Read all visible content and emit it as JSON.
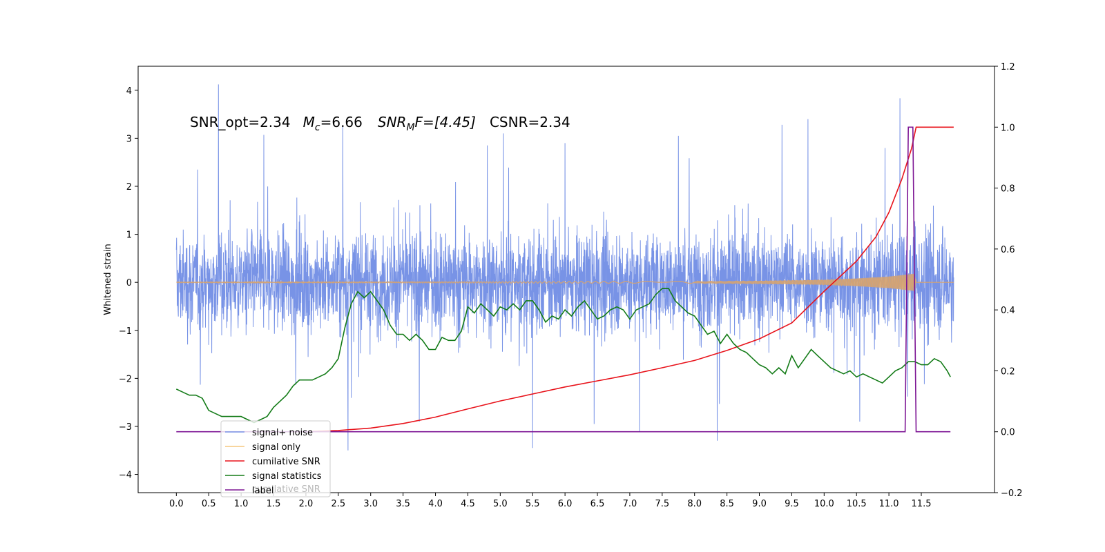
{
  "chart_data": {
    "type": "line",
    "annotation_parts": [
      "SNR_opt=2.34",
      "M",
      "c",
      "=6.66",
      "SNR",
      "M",
      "F=[4.45]",
      "CSNR=2.34"
    ],
    "ylabel_left": "Whitened strain",
    "x_ticks": [
      "0.0",
      "0.5",
      "1.0",
      "1.5",
      "2.0",
      "2.5",
      "3.0",
      "3.5",
      "4.0",
      "4.5",
      "5.0",
      "5.5",
      "6.0",
      "6.5",
      "7.0",
      "7.5",
      "8.0",
      "8.5",
      "9.0",
      "9.5",
      "10.0",
      "10.5",
      "11.0",
      "11.5"
    ],
    "y_left_ticks": [
      "4",
      "3",
      "2",
      "1",
      "0",
      "−1",
      "−2",
      "−3",
      "−4"
    ],
    "y_right_ticks": [
      "1.2",
      "1.0",
      "0.8",
      "0.6",
      "0.4",
      "0.2",
      "0.0",
      "−0.2"
    ],
    "xlim": [
      -0.59,
      12.63
    ],
    "ylim_left": [
      -4.38,
      4.5
    ],
    "ylim_right": [
      -0.2,
      1.2
    ],
    "grid": false,
    "legend_position": "lower-left",
    "legend": [
      {
        "label": "signal+ noise",
        "color": "#7893e6"
      },
      {
        "label": "signal only",
        "color": "#f5c77e"
      },
      {
        "label": "cumilative SNR",
        "color": "#e8121a"
      },
      {
        "label": "signal statistics",
        "color": "#137b17"
      },
      {
        "label": "label",
        "color": "#7d1594"
      }
    ],
    "legend_overlap_text": "cumilative SNR",
    "series": [
      {
        "name": "signal+ noise",
        "axis": "left",
        "color": "#7893e6",
        "x_range": [
          0,
          12.0
        ],
        "typical_range": [
          -1.5,
          1.5
        ],
        "peak_max": 4.12,
        "peak_min": -3.5,
        "spikes": [
          [
            0.65,
            4.12
          ],
          [
            2.65,
            -3.5
          ],
          [
            5.5,
            -3.45
          ],
          [
            2.57,
            3.25
          ],
          [
            7.75,
            3.05
          ],
          [
            9.35,
            3.28
          ],
          [
            9.75,
            3.4
          ],
          [
            1.35,
            3.07
          ],
          [
            5.05,
            3.1
          ],
          [
            3.75,
            -2.9
          ],
          [
            6.45,
            -2.95
          ],
          [
            8.35,
            -3.3
          ],
          [
            10.55,
            -2.9
          ],
          [
            7.15,
            -3.1
          ],
          [
            4.8,
            2.85
          ],
          [
            6.0,
            2.9
          ]
        ]
      },
      {
        "name": "signal only",
        "axis": "left",
        "color": "#f5c77e",
        "baseline": 0,
        "x": [
          0,
          8.0,
          9.0,
          10.0,
          10.5,
          11.0,
          11.4,
          11.42,
          12.0
        ],
        "amplitude": [
          0.01,
          0.02,
          0.03,
          0.05,
          0.08,
          0.12,
          0.18,
          0.0,
          0.0
        ]
      },
      {
        "name": "cumilative SNR",
        "axis": "right",
        "color": "#e8121a",
        "x": [
          2.0,
          2.5,
          3.0,
          3.5,
          4.0,
          4.5,
          5.0,
          5.5,
          6.0,
          6.5,
          7.0,
          7.5,
          8.0,
          8.5,
          9.0,
          9.5,
          10.0,
          10.5,
          10.8,
          11.0,
          11.2,
          11.35,
          11.42,
          11.5,
          12.0
        ],
        "y": [
          0.0,
          0.004,
          0.012,
          0.027,
          0.048,
          0.075,
          0.101,
          0.124,
          0.147,
          0.167,
          0.187,
          0.21,
          0.234,
          0.267,
          0.305,
          0.357,
          0.461,
          0.56,
          0.64,
          0.72,
          0.83,
          0.93,
          1.0,
          1.0,
          1.0
        ]
      },
      {
        "name": "signal statistics",
        "axis": "right",
        "color": "#137b17",
        "x": [
          0.0,
          0.1,
          0.2,
          0.3,
          0.4,
          0.5,
          0.6,
          0.7,
          0.8,
          0.9,
          1.0,
          1.1,
          1.2,
          1.3,
          1.4,
          1.5,
          1.6,
          1.7,
          1.8,
          1.9,
          2.0,
          2.1,
          2.2,
          2.3,
          2.4,
          2.5,
          2.6,
          2.7,
          2.8,
          2.9,
          3.0,
          3.1,
          3.2,
          3.3,
          3.4,
          3.5,
          3.6,
          3.7,
          3.8,
          3.9,
          4.0,
          4.1,
          4.2,
          4.3,
          4.4,
          4.5,
          4.6,
          4.7,
          4.8,
          4.9,
          5.0,
          5.1,
          5.2,
          5.3,
          5.4,
          5.5,
          5.6,
          5.7,
          5.8,
          5.9,
          6.0,
          6.1,
          6.2,
          6.3,
          6.4,
          6.5,
          6.6,
          6.7,
          6.8,
          6.9,
          7.0,
          7.1,
          7.2,
          7.3,
          7.4,
          7.5,
          7.6,
          7.7,
          7.8,
          7.9,
          8.0,
          8.1,
          8.2,
          8.3,
          8.4,
          8.5,
          8.6,
          8.7,
          8.8,
          8.9,
          9.0,
          9.1,
          9.2,
          9.3,
          9.4,
          9.5,
          9.6,
          9.7,
          9.8,
          9.9,
          10.0,
          10.1,
          10.2,
          10.3,
          10.4,
          10.5,
          10.6,
          10.7,
          10.8,
          10.9,
          11.0,
          11.1,
          11.2,
          11.3,
          11.4,
          11.5,
          11.6,
          11.7,
          11.8,
          11.9,
          12.0
        ],
        "y": [
          0.14,
          0.13,
          0.12,
          0.12,
          0.11,
          0.07,
          0.06,
          0.05,
          0.05,
          0.05,
          0.05,
          0.04,
          0.03,
          0.04,
          0.05,
          0.08,
          0.1,
          0.12,
          0.15,
          0.17,
          0.17,
          0.17,
          0.18,
          0.19,
          0.21,
          0.24,
          0.34,
          0.42,
          0.46,
          0.44,
          0.46,
          0.43,
          0.4,
          0.35,
          0.32,
          0.32,
          0.3,
          0.32,
          0.3,
          0.27,
          0.27,
          0.31,
          0.3,
          0.3,
          0.33,
          0.41,
          0.39,
          0.42,
          0.4,
          0.38,
          0.41,
          0.4,
          0.42,
          0.4,
          0.43,
          0.43,
          0.4,
          0.36,
          0.38,
          0.37,
          0.4,
          0.38,
          0.41,
          0.43,
          0.4,
          0.37,
          0.38,
          0.4,
          0.41,
          0.4,
          0.37,
          0.4,
          0.41,
          0.42,
          0.45,
          0.47,
          0.47,
          0.43,
          0.41,
          0.39,
          0.38,
          0.35,
          0.32,
          0.33,
          0.29,
          0.32,
          0.29,
          0.27,
          0.26,
          0.24,
          0.22,
          0.21,
          0.19,
          0.21,
          0.19,
          0.25,
          0.21,
          0.24,
          0.27,
          0.25,
          0.23,
          0.21,
          0.2,
          0.19,
          0.2,
          0.18,
          0.19,
          0.18,
          0.17,
          0.16,
          0.18,
          0.2,
          0.21,
          0.23,
          0.23,
          0.22,
          0.22,
          0.24,
          0.23,
          0.2,
          0.18
        ],
        "x_end": 11.95
      },
      {
        "name": "label",
        "axis": "right",
        "color": "#7d1594",
        "x": [
          0.0,
          11.25,
          11.3,
          11.37,
          11.42,
          11.45,
          11.95
        ],
        "y": [
          0.0,
          0.0,
          1.0,
          1.0,
          0.0,
          0.0,
          0.0
        ]
      }
    ]
  }
}
